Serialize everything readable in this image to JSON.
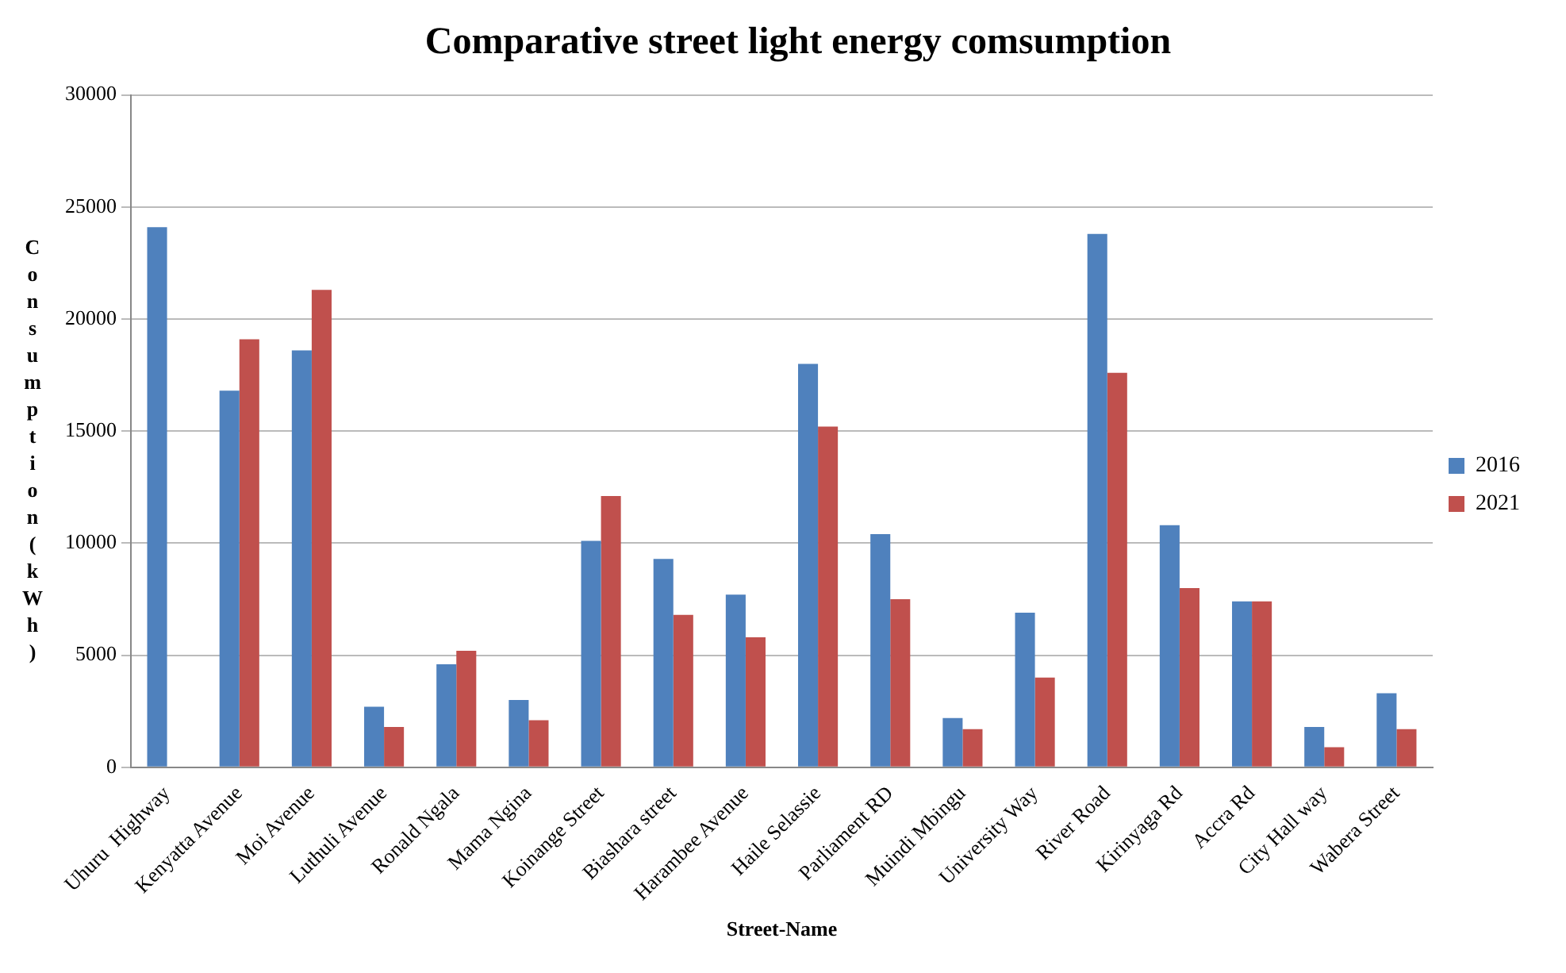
{
  "chart_data": {
    "type": "bar",
    "title": "Comparative street light energy comsumption",
    "xlabel": "Street-Name",
    "ylabel": "Consumption(kWh)",
    "categories": [
      "Uhuru  Highway",
      "Kenyatta Avenue",
      "Moi Avenue",
      "Luthuli Avenue",
      "Ronald Ngala",
      "Mama Ngina",
      "Koinange Street",
      "Biashara street",
      "Harambee Avenue",
      "Haile Selassie",
      "Parliament RD",
      "Muindi Mbingu",
      "University Way",
      "River Road",
      "Kirinyaga Rd",
      "Accra Rd",
      "City Hall way",
      "Wabera Street"
    ],
    "series": [
      {
        "name": "2016",
        "color": "#4f81bd",
        "values": [
          24100,
          16800,
          18600,
          2700,
          4600,
          3000,
          10100,
          9300,
          7700,
          18000,
          10400,
          2200,
          6900,
          23800,
          10800,
          7400,
          1800,
          3300
        ]
      },
      {
        "name": "2021",
        "color": "#c0504d",
        "values": [
          null,
          19100,
          21300,
          1800,
          5200,
          2100,
          12100,
          6800,
          5800,
          15200,
          7500,
          1700,
          4000,
          17600,
          8000,
          7400,
          900,
          1700
        ]
      }
    ],
    "ylim": [
      0,
      30000
    ],
    "yticks": [
      0,
      5000,
      10000,
      15000,
      20000,
      25000,
      30000
    ],
    "grid": "y",
    "legend": "right"
  }
}
